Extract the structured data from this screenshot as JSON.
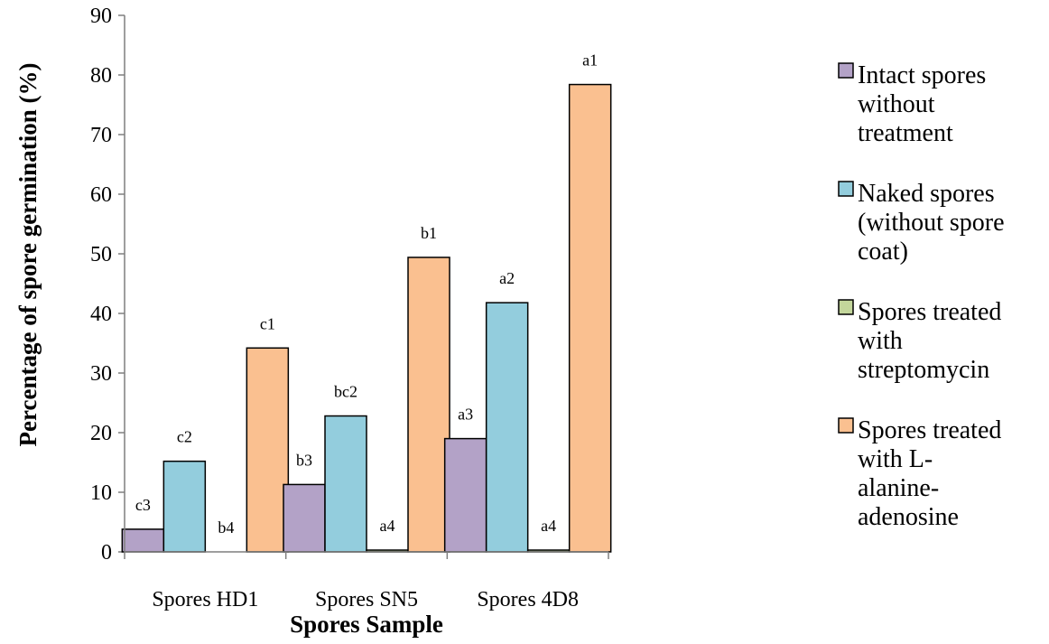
{
  "chart_data": {
    "type": "bar",
    "title": "",
    "xlabel": "Spores Sample",
    "ylabel": "Percentage of spore germination (%)",
    "ylim": [
      0,
      90
    ],
    "ytick_step": 10,
    "grid": false,
    "legend_position": "right",
    "categories": [
      "Spores HD1",
      "Spores SN5",
      "Spores 4D8"
    ],
    "series": [
      {
        "name": [
          "Intact spores",
          "without",
          "treatment"
        ],
        "color": "#b3a2c7",
        "values": [
          3.8,
          11.3,
          19.0
        ],
        "labels": [
          "c3",
          "b3",
          "a3"
        ]
      },
      {
        "name": [
          "Naked spores",
          "(without spore",
          "coat)"
        ],
        "color": "#93cddd",
        "values": [
          15.2,
          22.8,
          41.8
        ],
        "labels": [
          "c2",
          "bc2",
          "a2"
        ]
      },
      {
        "name": [
          "Spores treated",
          "with",
          "streptomycin"
        ],
        "color": "#c3d69b",
        "values": [
          0,
          0.3,
          0.3
        ],
        "labels": [
          "b4",
          "a4",
          "a4"
        ]
      },
      {
        "name": [
          "Spores treated",
          "with L-",
          "alanine-",
          "adenosine"
        ],
        "color": "#fac090",
        "values": [
          34.2,
          49.4,
          78.4
        ],
        "labels": [
          "c1",
          "b1",
          "a1"
        ]
      }
    ]
  }
}
